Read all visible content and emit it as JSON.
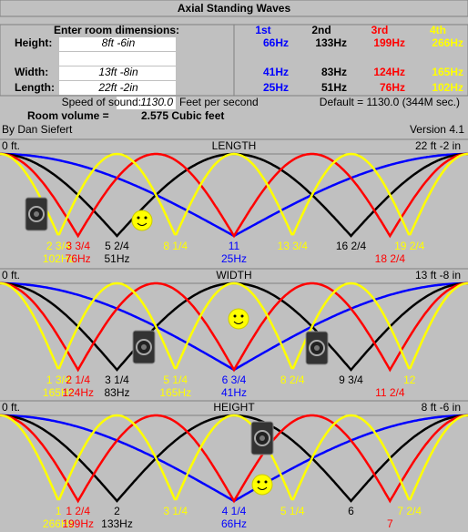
{
  "title": "Axial Standing Waves",
  "prompt": "Enter room dimensions:",
  "harmonics": [
    {
      "label": "1st",
      "color": "#0000ff"
    },
    {
      "label": "2nd",
      "color": "#000000"
    },
    {
      "label": "3rd",
      "color": "#ff0000"
    },
    {
      "label": "4th",
      "color": "#ffff00"
    }
  ],
  "dimensions": [
    {
      "label": "Height:",
      "value": "8ft -6in",
      "freqs": [
        "66Hz",
        "133Hz",
        "199Hz",
        "266Hz"
      ]
    },
    {
      "label": "Width:",
      "value": "13ft -8in",
      "freqs": [
        "41Hz",
        "83Hz",
        "124Hz",
        "165Hz"
      ]
    },
    {
      "label": "Length:",
      "value": "22ft -2in",
      "freqs": [
        "25Hz",
        "51Hz",
        "76Hz",
        "102Hz"
      ]
    }
  ],
  "speed": {
    "label": "Speed of sound:",
    "value": "1130.0",
    "unit": "Feet per second",
    "default": "Default = 1130.0 (344M sec.)"
  },
  "volume": {
    "label": "Room volume =",
    "value": "2.575 Cubic feet"
  },
  "author": "By Dan Siefert",
  "version": "Version 4.1",
  "panels": [
    {
      "start": "0 ft.",
      "title": "LENGTH",
      "end": "22 ft -2 in",
      "nodes": [
        {
          "label": "2 3/4",
          "freq": "102Hz",
          "color": "#ffff00"
        },
        {
          "label": "3 3/4",
          "freq": "76Hz",
          "color": "#ff0000"
        },
        {
          "label": "5 2/4",
          "freq": "51Hz",
          "color": "#000000"
        },
        {
          "label": "8 1/4",
          "color": "#ffff00"
        },
        {
          "label": "11",
          "freq": "25Hz",
          "color": "#0000ff"
        },
        {
          "label": "13 3/4",
          "color": "#ffff00"
        },
        {
          "label": "16 2/4",
          "color": "#000000"
        },
        {
          "label": "18 2/4",
          "color": "#ff0000"
        },
        {
          "label": "19 2/4",
          "color": "#ffff00"
        }
      ]
    },
    {
      "start": "0 ft.",
      "title": "WIDTH",
      "end": "13 ft -8 in",
      "nodes": [
        {
          "label": "1 3/4",
          "freq": "165Hz",
          "color": "#ffff00"
        },
        {
          "label": "2 1/4",
          "freq": "124Hz",
          "color": "#ff0000"
        },
        {
          "label": "3 1/4",
          "freq": "83Hz",
          "color": "#000000"
        },
        {
          "label": "5 1/4",
          "freq": "165Hz",
          "color": "#ffff00"
        },
        {
          "label": "6 3/4",
          "freq": "41Hz",
          "color": "#0000ff"
        },
        {
          "label": "8 2/4",
          "color": "#ffff00"
        },
        {
          "label": "9 3/4",
          "color": "#000000"
        },
        {
          "label": "11 2/4",
          "color": "#ff0000"
        },
        {
          "label": "12",
          "color": "#ffff00"
        }
      ]
    },
    {
      "start": "0 ft.",
      "title": "HEIGHT",
      "end": "8 ft -6 in",
      "nodes": [
        {
          "label": "1",
          "freq": "266Hz",
          "color": "#ffff00"
        },
        {
          "label": "1 2/4",
          "freq": "199Hz",
          "color": "#ff0000"
        },
        {
          "label": "2",
          "freq": "133Hz",
          "color": "#000000"
        },
        {
          "label": "3 1/4",
          "color": "#ffff00"
        },
        {
          "label": "4 1/4",
          "freq": "66Hz",
          "color": "#0000ff"
        },
        {
          "label": "5 1/4",
          "color": "#ffff00"
        },
        {
          "label": "6",
          "color": "#000000"
        },
        {
          "label": "7",
          "color": "#ff0000"
        },
        {
          "label": "7 2/4",
          "color": "#ffff00"
        }
      ]
    }
  ]
}
